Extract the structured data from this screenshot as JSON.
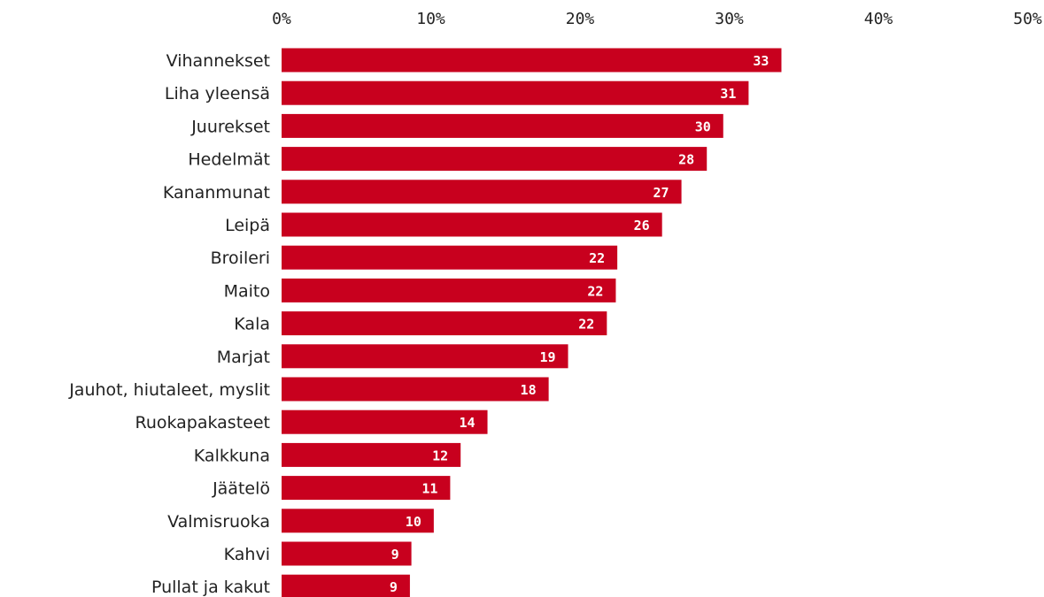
{
  "chart_data": {
    "type": "bar",
    "orientation": "horizontal",
    "categories": [
      "Vihannekset",
      "Liha yleensä",
      "Juurekset",
      "Hedelmät",
      "Kananmunat",
      "Leipä",
      "Broileri",
      "Maito",
      "Kala",
      "Marjat",
      "Jauhot, hiutaleet, myslit",
      "Ruokapakasteet",
      "Kalkkuna",
      "Jäätelö",
      "Valmisruoka",
      "Kahvi",
      "Pullat ja kakut"
    ],
    "values": [
      33.5,
      31.3,
      29.6,
      28.5,
      26.8,
      25.5,
      22.5,
      22.4,
      21.8,
      19.2,
      17.9,
      13.8,
      12.0,
      11.3,
      10.2,
      8.7,
      8.6
    ],
    "value_labels": [
      "33",
      "31",
      "30",
      "28",
      "27",
      "26",
      "22",
      "22",
      "22",
      "19",
      "18",
      "14",
      "12",
      "11",
      "10",
      "9",
      "9"
    ],
    "x_ticks": [
      "0%",
      "10%",
      "20%",
      "30%",
      "40%",
      "50%"
    ],
    "xlim": [
      0,
      50
    ],
    "axis_position": "top",
    "grid": false,
    "colors": {
      "bar": "#C8001E",
      "value_text": "#FFFFFF"
    }
  }
}
